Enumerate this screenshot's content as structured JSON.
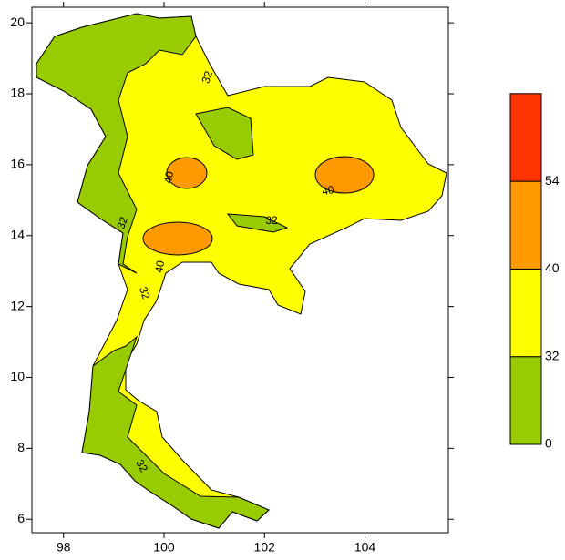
{
  "map": {
    "xlim": [
      97.37,
      105.66
    ],
    "xticks": [
      98,
      100,
      102,
      104
    ],
    "ylim": [
      5.62,
      20.44
    ],
    "yticks": [
      6,
      8,
      10,
      12,
      14,
      16,
      18,
      20
    ],
    "colorbar": {
      "levels": [
        0,
        32,
        40,
        54
      ],
      "colors": [
        "#99cc00",
        "#ffff00",
        "#ff9900",
        "#ff3300"
      ]
    },
    "contour_labels": [
      "32",
      "32",
      "32",
      "32",
      "40",
      "40",
      "40",
      "32"
    ]
  }
}
